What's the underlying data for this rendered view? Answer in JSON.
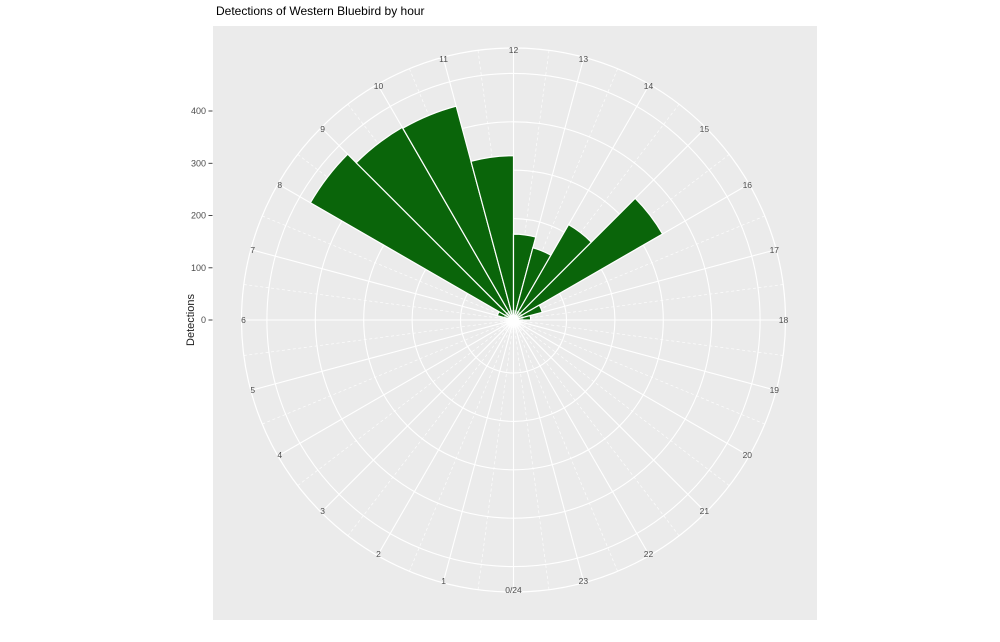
{
  "title": "Detections of Western Bluebird by hour",
  "y_axis": {
    "label": "Detections",
    "tick_labels": [
      "0",
      "100",
      "200",
      "300",
      "400"
    ],
    "tick_values": [
      0,
      100,
      200,
      300,
      400
    ]
  },
  "hour_axis": {
    "labels": [
      "0/24",
      "1",
      "2",
      "3",
      "4",
      "5",
      "6",
      "7",
      "8",
      "9",
      "10",
      "11",
      "12",
      "13",
      "14",
      "15",
      "16",
      "17",
      "18",
      "19",
      "20",
      "21",
      "22",
      "23"
    ]
  },
  "chart_data": {
    "type": "bar",
    "coord": "polar",
    "orientation": "hour 0 at bottom, hours increase clockwise, 12 at top; each bar spans one hour",
    "categories": [
      0,
      1,
      2,
      3,
      4,
      5,
      6,
      7,
      8,
      9,
      10,
      11,
      12,
      13,
      14,
      15,
      16,
      17,
      18,
      19,
      20,
      21,
      22,
      23
    ],
    "values": [
      0,
      0,
      0,
      0,
      0,
      0,
      0,
      25,
      475,
      450,
      448,
      330,
      168,
      145,
      218,
      346,
      52,
      26,
      0,
      0,
      0,
      0,
      0,
      0
    ],
    "title": "Detections of Western Bluebird by hour",
    "ylabel": "Detections",
    "ylim": [
      0,
      550
    ],
    "r_axis_labeled_breaks": [
      0,
      100,
      200,
      300,
      400
    ],
    "r_gridline_values": [
      100,
      200,
      300,
      400,
      500
    ],
    "grid": true,
    "legend": "none"
  },
  "colors": {
    "bar_fill": "#0a650a",
    "bar_border": "#ffffff",
    "panel_bg": "#ebebeb",
    "grid_color": "#ffffff",
    "axis_text": "#4d4d4d",
    "tick_mark": "#333333"
  }
}
